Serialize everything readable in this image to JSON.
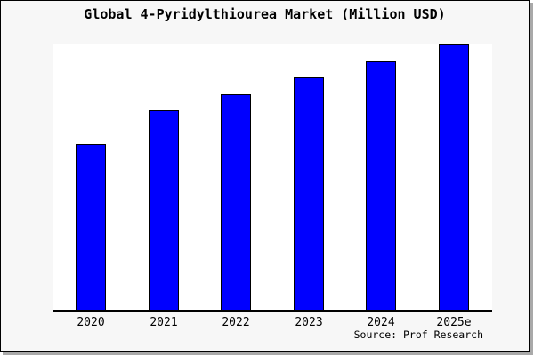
{
  "figure": {
    "background": "#f7f7f7",
    "frame_border_color": "#000000",
    "shadow_color": "#a9a9a9"
  },
  "colors": {
    "bar_fill": "#0000ff",
    "bar_border": "#000000",
    "axis": "#000000",
    "plot_bg": "#ffffff",
    "figure_bg": "#f7f7f7"
  },
  "source_credit": "Source: Prof Research",
  "chart_data": {
    "type": "bar",
    "title": "Global 4-Pyridylthiourea Market (Million USD)",
    "categories": [
      "2020",
      "2021",
      "2022",
      "2023",
      "2024",
      "2025e"
    ],
    "values": [
      62.5,
      75.0,
      81.3,
      87.5,
      93.7,
      100.0
    ],
    "value_note": "relative values estimated from bar heights; chart displays no y-axis or data labels",
    "xlabel": "",
    "ylabel": "",
    "ylim": [
      0,
      100
    ],
    "grid": false,
    "legend": null,
    "bar_color": "#0000ff",
    "source": "Source: Prof Research"
  }
}
